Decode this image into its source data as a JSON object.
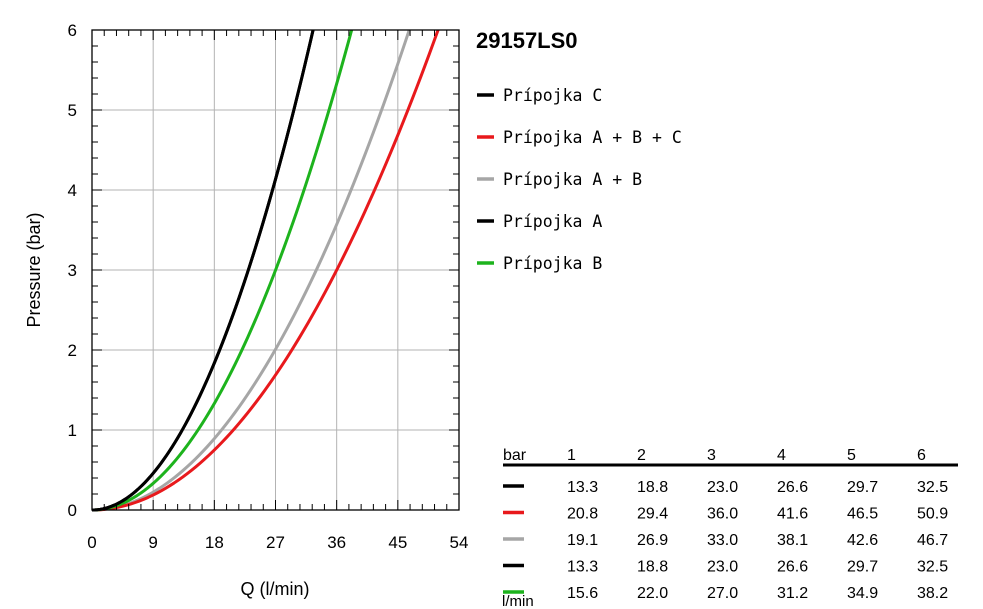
{
  "chart_data": {
    "type": "line",
    "title": "29157LS0",
    "xlabel": "Q (l/min)",
    "ylabel": "Pressure (bar)",
    "xlim": [
      0,
      54
    ],
    "ylim": [
      0,
      6
    ],
    "x_ticks": [
      "0",
      "9",
      "18",
      "27",
      "36",
      "45",
      "54"
    ],
    "y_ticks": [
      "0",
      "1",
      "2",
      "3",
      "4",
      "5",
      "6"
    ],
    "grid": true,
    "legend_position": "right",
    "pressure_points": [
      0,
      1,
      2,
      3,
      4,
      5,
      6
    ],
    "series": [
      {
        "name": "Prípojka C",
        "color": "#000000",
        "flow": [
          0,
          13.3,
          18.8,
          23.0,
          26.6,
          29.7,
          32.5
        ]
      },
      {
        "name": "Prípojka A + B + C",
        "color": "#e8191c",
        "flow": [
          0,
          20.8,
          29.4,
          36.0,
          41.6,
          46.5,
          50.9
        ]
      },
      {
        "name": "Prípojka A + B",
        "color": "#a6a6a6",
        "flow": [
          0,
          19.1,
          26.9,
          33.0,
          38.1,
          42.6,
          46.7
        ]
      },
      {
        "name": "Prípojka A",
        "color": "#000000",
        "flow": [
          0,
          13.3,
          18.8,
          23.0,
          26.6,
          29.7,
          32.5
        ]
      },
      {
        "name": "Prípojka B",
        "color": "#1db31d",
        "flow": [
          0,
          15.6,
          22.0,
          27.0,
          31.2,
          34.9,
          38.2
        ]
      }
    ],
    "table": {
      "header_label": "bar",
      "unit_label": "l/min",
      "columns": [
        "1",
        "2",
        "3",
        "4",
        "5",
        "6"
      ],
      "rows": [
        {
          "color": "#000000",
          "values": [
            "13.3",
            "18.8",
            "23.0",
            "26.6",
            "29.7",
            "32.5"
          ]
        },
        {
          "color": "#e8191c",
          "values": [
            "20.8",
            "29.4",
            "36.0",
            "41.6",
            "46.5",
            "50.9"
          ]
        },
        {
          "color": "#a6a6a6",
          "values": [
            "19.1",
            "26.9",
            "33.0",
            "38.1",
            "42.6",
            "46.7"
          ]
        },
        {
          "color": "#000000",
          "values": [
            "13.3",
            "18.8",
            "23.0",
            "26.6",
            "29.7",
            "32.5"
          ]
        },
        {
          "color": "#1db31d",
          "values": [
            "15.6",
            "22.0",
            "27.0",
            "31.2",
            "34.9",
            "38.2"
          ]
        }
      ]
    }
  }
}
